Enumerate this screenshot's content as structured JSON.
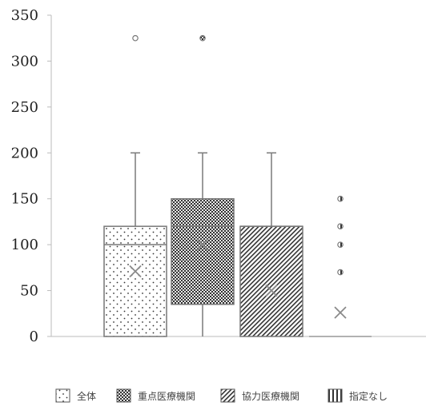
{
  "chart_data": {
    "type": "box",
    "ylim": [
      0,
      350
    ],
    "yticks": [
      0,
      50,
      100,
      150,
      200,
      250,
      300,
      350
    ],
    "grid": false,
    "legend_position": "bottom",
    "series": [
      {
        "name": "全体",
        "pattern": "dots",
        "min": 0,
        "q1": 0,
        "median": 100,
        "q3": 120,
        "max": 200,
        "mean": 71,
        "outliers": [
          325
        ]
      },
      {
        "name": "重点医療機関",
        "pattern": "checker",
        "min": 0,
        "q1": 35,
        "median": 120,
        "q3": 150,
        "max": 200,
        "mean": 100,
        "outliers": [
          325
        ]
      },
      {
        "name": "協力医療機関",
        "pattern": "diagonal",
        "min": 0,
        "q1": 0,
        "median": 120,
        "q3": 120,
        "max": 200,
        "mean": 50,
        "outliers": []
      },
      {
        "name": "指定なし",
        "pattern": "vertical",
        "min": 0,
        "q1": 0,
        "median": 0,
        "q3": 0,
        "max": 0,
        "mean": 26,
        "outliers": [
          70,
          100,
          120,
          150
        ]
      }
    ]
  }
}
